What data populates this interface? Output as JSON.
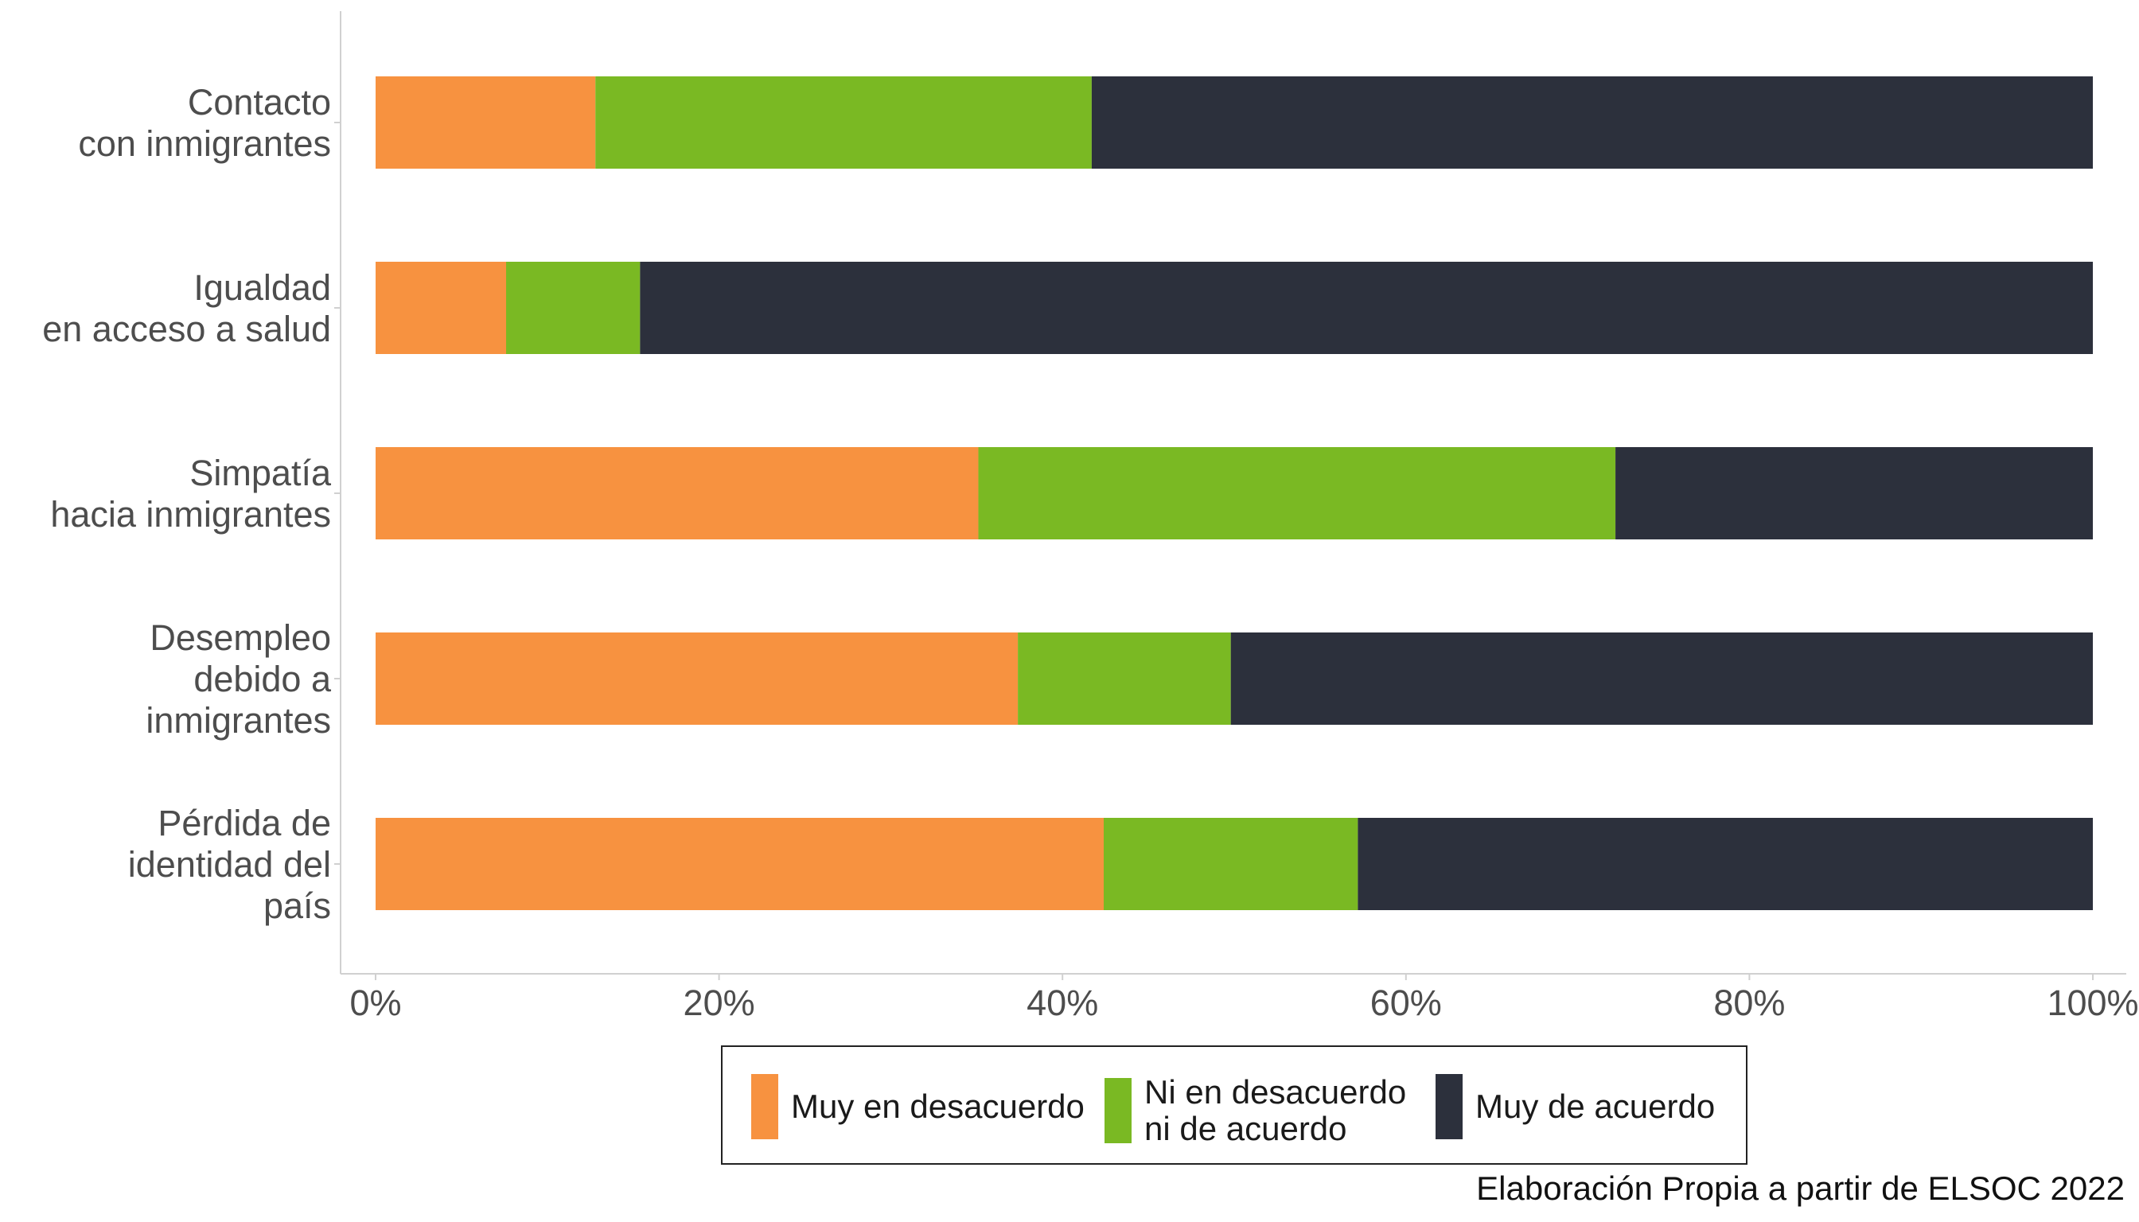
{
  "chart_data": {
    "type": "bar",
    "orientation": "horizontal",
    "stacked": true,
    "normalized_percent": true,
    "categories": [
      "Contacto\ncon inmigrantes",
      "Igualdad\nen acceso a salud",
      "Simpatía\nhacia inmigrantes",
      "Desempleo\ndebido a\ninmigrantes",
      "Pérdida de\nidentidad del\npaís"
    ],
    "series": [
      {
        "name": "Muy en desacuerdo",
        "color": "#F79240",
        "values": [
          12.8,
          7.6,
          35.1,
          37.4,
          42.4
        ]
      },
      {
        "name": "Ni en desacuerdo\nni de acuerdo",
        "color": "#7AB923",
        "values": [
          28.9,
          7.8,
          37.1,
          12.4,
          14.8
        ]
      },
      {
        "name": "Muy de acuerdo",
        "color": "#2C303C",
        "values": [
          58.3,
          84.6,
          27.8,
          50.2,
          42.8
        ]
      }
    ],
    "xlim": [
      0,
      100
    ],
    "xticks": [
      "0%",
      "20%",
      "40%",
      "60%",
      "80%",
      "100%"
    ],
    "grid": false,
    "legend_position": "bottom",
    "caption": "Elaboración Propia a partir de ELSOC 2022"
  }
}
